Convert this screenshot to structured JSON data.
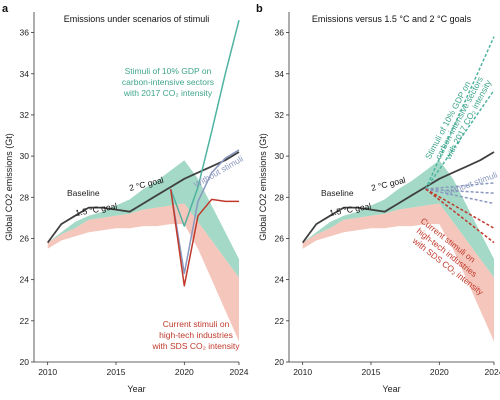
{
  "colors": {
    "green": "#8ccfb8",
    "green_text": "#3fa58b",
    "pink": "#f3b8ab",
    "red": "#c0392b",
    "teal": "#4fb3a0",
    "blue_gray": "#8a97bf",
    "baseline": "#404040"
  },
  "chart_data": [
    {
      "panel": "a",
      "type": "line",
      "title": "Emissions under scenarios of stimuli",
      "xlabel": "Year",
      "ylabel": "Global CO2 emissions (Gt)",
      "xlim": [
        2009,
        2024
      ],
      "ylim": [
        20,
        37
      ],
      "xticks": [
        2010,
        2015,
        2020,
        2024
      ],
      "yticks": [
        20,
        22,
        24,
        26,
        28,
        30,
        32,
        34,
        36
      ],
      "series": [
        {
          "name": "Baseline",
          "kind": "line",
          "color": "#404040",
          "x": [
            2010,
            2011,
            2012,
            2013,
            2014,
            2015,
            2016,
            2017,
            2018,
            2019,
            2020,
            2021,
            2022,
            2023,
            2024
          ],
          "y": [
            25.8,
            26.7,
            27.1,
            27.5,
            27.5,
            27.4,
            27.3,
            27.7,
            28.1,
            28.5,
            28.9,
            29.2,
            29.5,
            29.8,
            30.2
          ]
        },
        {
          "name": "2 °C goal",
          "kind": "band",
          "color": "#8ccfb8",
          "x": [
            2010,
            2011,
            2012,
            2013,
            2014,
            2015,
            2016,
            2017,
            2018,
            2019,
            2020,
            2021,
            2022,
            2023,
            2024
          ],
          "upper": [
            25.8,
            26.3,
            26.8,
            27.1,
            27.3,
            27.6,
            27.9,
            28.4,
            28.8,
            29.3,
            29.8,
            28.9,
            27.6,
            26.3,
            25.0
          ],
          "lower": [
            25.8,
            26.2,
            26.5,
            26.9,
            27.0,
            27.1,
            27.2,
            27.4,
            27.5,
            27.6,
            27.7,
            26.8,
            25.9,
            25.0,
            24.1
          ]
        },
        {
          "name": "1.5 °C goal",
          "kind": "band",
          "color": "#f3b8ab",
          "x": [
            2010,
            2011,
            2012,
            2013,
            2014,
            2015,
            2016,
            2017,
            2018,
            2019,
            2020,
            2021,
            2022,
            2023,
            2024
          ],
          "upper": [
            25.8,
            26.2,
            26.5,
            26.9,
            27.0,
            27.1,
            27.2,
            27.4,
            27.5,
            27.6,
            27.7,
            26.8,
            25.9,
            25.0,
            24.1
          ],
          "lower": [
            25.5,
            25.9,
            26.1,
            26.3,
            26.4,
            26.5,
            26.5,
            26.6,
            26.6,
            26.7,
            26.7,
            25.5,
            24.0,
            22.5,
            21.0
          ]
        },
        {
          "name": "Stimuli of 10% GDP on carbon-intensive sectors with 2017 CO2 intensity",
          "kind": "line",
          "color": "#4fb3a0",
          "x": [
            2019,
            2020,
            2021,
            2022,
            2023,
            2024
          ],
          "y": [
            28.4,
            26.6,
            28.5,
            31.2,
            34.0,
            36.6
          ]
        },
        {
          "name": "Without stimuli",
          "kind": "line",
          "color": "#8a97bf",
          "x": [
            2019,
            2020,
            2021,
            2022,
            2023,
            2024
          ],
          "y": [
            28.4,
            24.3,
            27.8,
            29.2,
            29.9,
            30.3
          ]
        },
        {
          "name": "Current stimuli on high-tech industries with SDS CO2 intensity",
          "kind": "line",
          "color": "#c0392b",
          "x": [
            2019,
            2020,
            2021,
            2022,
            2023,
            2024
          ],
          "y": [
            28.4,
            23.7,
            27.1,
            27.9,
            27.8,
            27.8
          ]
        }
      ],
      "annotations": [
        {
          "text": "Baseline",
          "color": "#222"
        },
        {
          "text": "2 °C goal",
          "color": "#111"
        },
        {
          "text": "1.5 °C goal",
          "color": "#111"
        },
        {
          "text": "Stimuli of 10% GDP on",
          "color": "#3fa58b"
        },
        {
          "text": "carbon-intensive sectors",
          "color": "#3fa58b"
        },
        {
          "text": "with 2017 CO₂ intensity",
          "color": "#3fa58b"
        },
        {
          "text": "Without stimuli",
          "color": "#8a97bf"
        },
        {
          "text": "Current stimuli on",
          "color": "#c0392b"
        },
        {
          "text": "high-tech industries",
          "color": "#c0392b"
        },
        {
          "text": "with SDS CO₂ intensity",
          "color": "#c0392b"
        }
      ]
    },
    {
      "panel": "b",
      "type": "line",
      "title": "Emissions versus 1.5 °C and 2 °C goals",
      "xlabel": "Year",
      "ylabel": "Global CO2 emissions (Gt)",
      "xlim": [
        2009,
        2024
      ],
      "ylim": [
        20,
        37
      ],
      "xticks": [
        2010,
        2015,
        2020,
        2024
      ],
      "yticks": [
        20,
        22,
        24,
        26,
        28,
        30,
        32,
        34,
        36
      ],
      "series": [
        {
          "name": "Baseline",
          "kind": "line",
          "color": "#404040",
          "x": [
            2010,
            2011,
            2012,
            2013,
            2014,
            2015,
            2016,
            2017,
            2018,
            2019,
            2020,
            2021,
            2022,
            2023,
            2024
          ],
          "y": [
            25.8,
            26.7,
            27.1,
            27.5,
            27.5,
            27.4,
            27.3,
            27.7,
            28.1,
            28.5,
            28.9,
            29.2,
            29.5,
            29.8,
            30.2
          ]
        },
        {
          "name": "2 °C goal",
          "kind": "band",
          "color": "#8ccfb8",
          "x": [
            2010,
            2011,
            2012,
            2013,
            2014,
            2015,
            2016,
            2017,
            2018,
            2019,
            2020,
            2021,
            2022,
            2023,
            2024
          ],
          "upper": [
            25.8,
            26.3,
            26.8,
            27.1,
            27.3,
            27.6,
            27.9,
            28.4,
            28.8,
            29.3,
            29.8,
            28.9,
            27.6,
            26.3,
            25.0
          ],
          "lower": [
            25.8,
            26.2,
            26.5,
            26.9,
            27.0,
            27.1,
            27.2,
            27.4,
            27.5,
            27.6,
            27.7,
            26.8,
            25.9,
            25.0,
            24.1
          ]
        },
        {
          "name": "1.5 °C goal",
          "kind": "band",
          "color": "#f3b8ab",
          "x": [
            2010,
            2011,
            2012,
            2013,
            2014,
            2015,
            2016,
            2017,
            2018,
            2019,
            2020,
            2021,
            2022,
            2023,
            2024
          ],
          "upper": [
            25.8,
            26.2,
            26.5,
            26.9,
            27.0,
            27.1,
            27.2,
            27.4,
            27.5,
            27.6,
            27.7,
            26.8,
            25.9,
            25.0,
            24.1
          ],
          "lower": [
            25.5,
            25.9,
            26.1,
            26.3,
            26.4,
            26.5,
            26.5,
            26.6,
            26.6,
            26.7,
            26.7,
            25.5,
            24.0,
            22.5,
            21.0
          ]
        },
        {
          "name": "Stimuli of 10% GDP on carbon-intensive sectors with 2017 CO2 intensity",
          "kind": "dashed",
          "color": "#4fb3a0",
          "x": [
            2019,
            2024
          ],
          "y": [
            28.4,
            35.8
          ]
        },
        {
          "name": "Stimuli of 10% GDP on carbon-intensive sectors with 2017 CO2 intensity (low)",
          "kind": "dashed",
          "color": "#4fb3a0",
          "x": [
            2019,
            2024
          ],
          "y": [
            28.4,
            33.2
          ]
        },
        {
          "name": "Without stimuli",
          "kind": "dashed",
          "color": "#8a97bf",
          "x": [
            2019,
            2024
          ],
          "y": [
            28.4,
            28.7
          ]
        },
        {
          "name": "Without stimuli (mid)",
          "kind": "dashed",
          "color": "#8a97bf",
          "x": [
            2019,
            2024
          ],
          "y": [
            28.4,
            28.2
          ]
        },
        {
          "name": "Without stimuli (low)",
          "kind": "dashed",
          "color": "#8a97bf",
          "x": [
            2019,
            2024
          ],
          "y": [
            28.4,
            27.7
          ]
        },
        {
          "name": "Current stimuli on high-tech industries with SDS CO2 intensity",
          "kind": "dashed",
          "color": "#c0392b",
          "x": [
            2019,
            2024
          ],
          "y": [
            28.4,
            26.5
          ]
        },
        {
          "name": "Current stimuli on high-tech industries with SDS CO2 intensity (low)",
          "kind": "dashed",
          "color": "#c0392b",
          "x": [
            2019,
            2024
          ],
          "y": [
            28.4,
            25.8
          ]
        }
      ],
      "annotations": [
        {
          "text": "Baseline",
          "color": "#222"
        },
        {
          "text": "2 °C goal",
          "color": "#111"
        },
        {
          "text": "1.5 °C goal",
          "color": "#111"
        },
        {
          "text": "Stimuli of 10% GDP on",
          "color": "#3fa58b"
        },
        {
          "text": "carbon-intensive sectors",
          "color": "#3fa58b"
        },
        {
          "text": "with 2017 CO₂ intensity",
          "color": "#3fa58b"
        },
        {
          "text": "Without stimuli",
          "color": "#8a97bf"
        },
        {
          "text": "Current stimuli on",
          "color": "#c0392b"
        },
        {
          "text": "high-tech industries",
          "color": "#c0392b"
        },
        {
          "text": "with SDS CO₂ intensity",
          "color": "#c0392b"
        }
      ]
    }
  ]
}
